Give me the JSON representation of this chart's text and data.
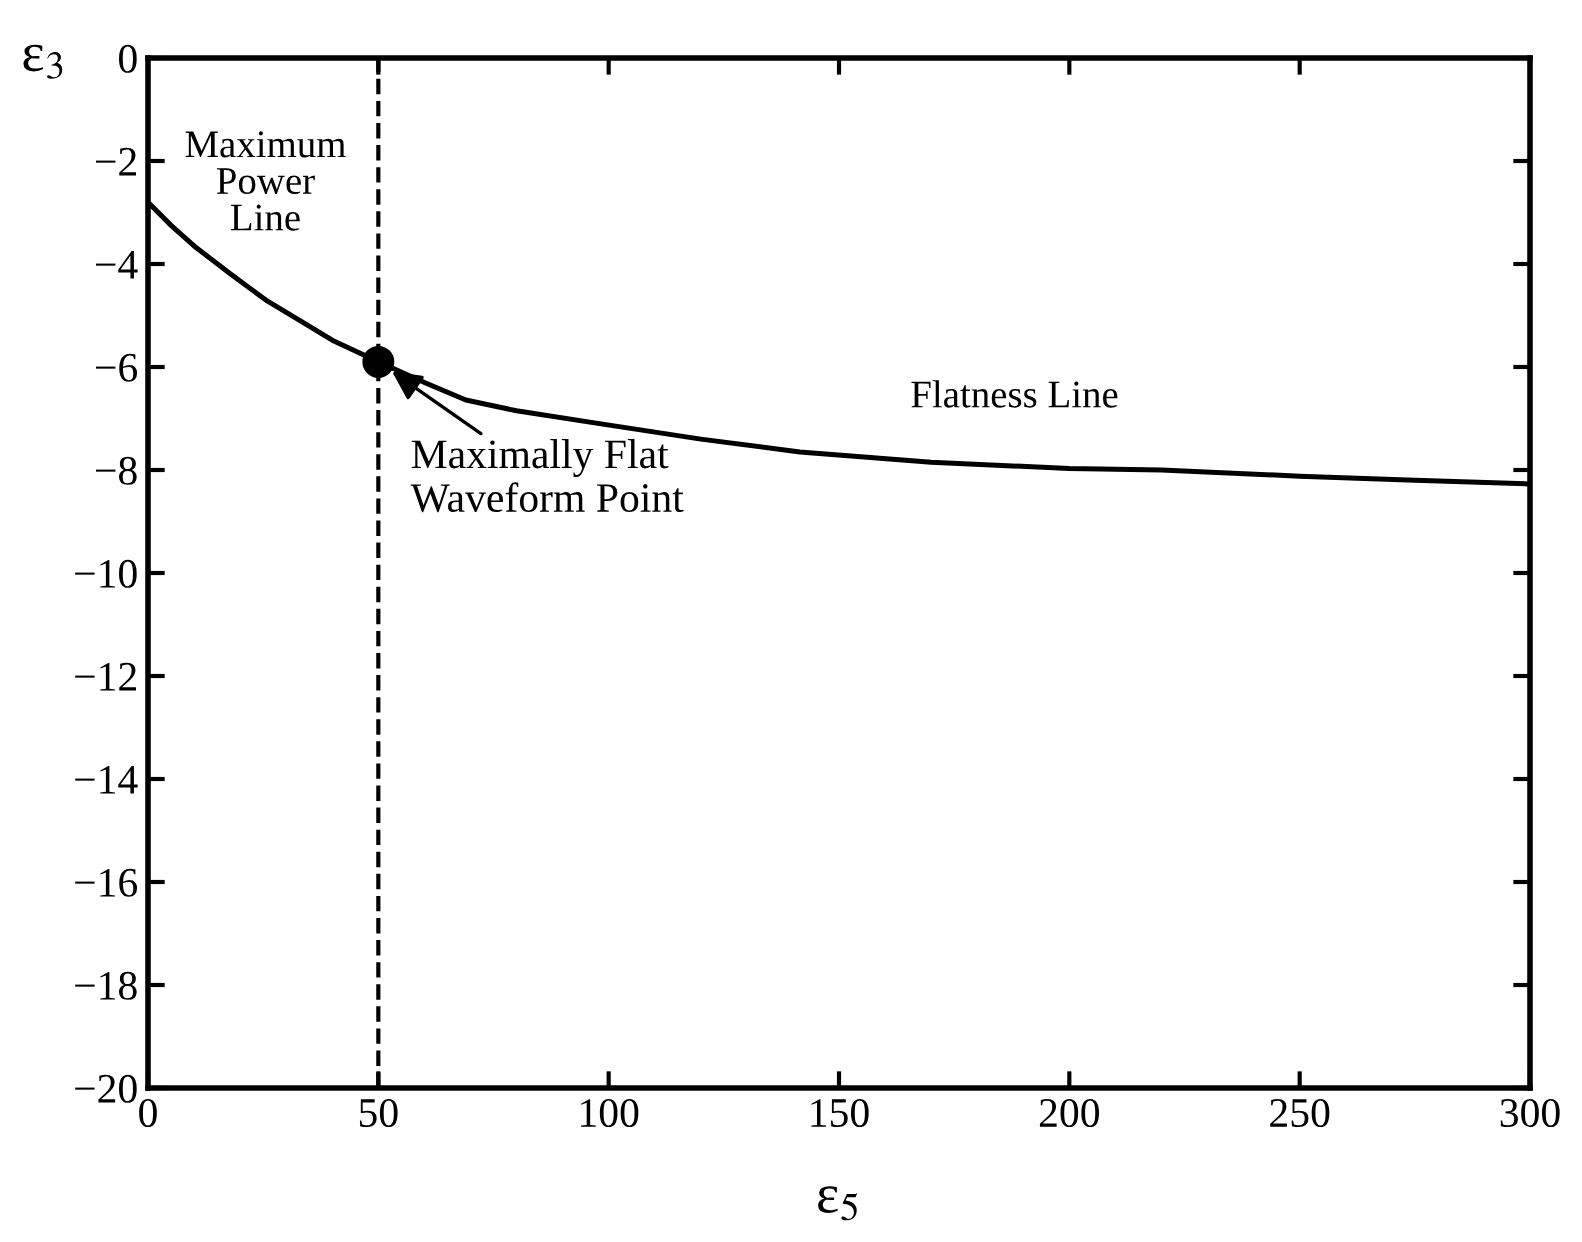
{
  "chart_data": {
    "type": "line",
    "xlabel": "ε$_{5}$",
    "ylabel": "ε$_{3}$",
    "series": [
      {
        "color": "#000000",
        "x": [
          0,
          5,
          10,
          18,
          25.6,
          33,
          40,
          50,
          60,
          69,
          80,
          98,
          120,
          141.5,
          170,
          200,
          220,
          250,
          275,
          300
        ],
        "values": [
          -2.8,
          -3.25,
          -3.65,
          -4.2,
          -4.7,
          -5.1,
          -5.48,
          -5.9,
          -6.3,
          -6.64,
          -6.85,
          -7.1,
          -7.4,
          -7.65,
          -7.85,
          -7.97,
          -8.0,
          -8.12,
          -8.2,
          -8.27
        ]
      },
      {
        "type": "scatter",
        "color": "#000000",
        "marker": "circle",
        "x": [
          50
        ],
        "values": [
          -5.9
        ]
      }
    ],
    "ref_lines": [
      {
        "axis": "x",
        "value": 50,
        "color": "#000000",
        "line_style": "dashed"
      }
    ],
    "annotations": [
      {
        "text": "Maximally Flat\nWaveform Point",
        "x": 50,
        "y": -5.9
      },
      "Maximum\nPower\nLine",
      "Flatness Line"
    ],
    "xlim": [
      0,
      300
    ],
    "ylim": [
      -20,
      0
    ],
    "xticks": [
      0,
      50,
      100,
      150,
      200,
      250,
      300
    ],
    "yticks": [
      0,
      -2,
      -4,
      -6,
      -8,
      -10,
      -12,
      -14,
      -16,
      -18,
      -20
    ],
    "grid": false,
    "legend": false
  }
}
